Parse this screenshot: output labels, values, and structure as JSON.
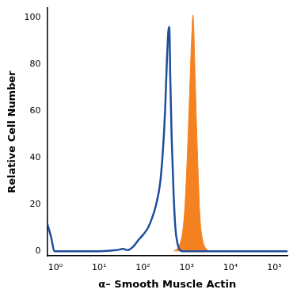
{
  "chart_data": {
    "type": "line",
    "x_label": "α– Smooth Muscle Actin",
    "y_label": "Relative Cell Number",
    "log": "x",
    "grid": false,
    "xlim": [
      0.65,
      200000
    ],
    "xticks": [
      {
        "value": 1,
        "label": "10⁰"
      },
      {
        "value": 10,
        "label": "10¹"
      },
      {
        "value": 100,
        "label": "10²"
      },
      {
        "value": 1000,
        "label": "10³"
      },
      {
        "value": 10000,
        "label": "10⁴"
      },
      {
        "value": 100000,
        "label": "10⁵"
      }
    ],
    "ylim": [
      -2,
      104
    ],
    "yticks": [
      0,
      20,
      40,
      60,
      80,
      100
    ],
    "series": [
      {
        "type": "line",
        "color": "#1f4e9c",
        "x": [
          0.65,
          0.8,
          0.95,
          10,
          25,
          35,
          45,
          60,
          80,
          100,
          130,
          160,
          200,
          250,
          290,
          320,
          350,
          380,
          400,
          420,
          450,
          500,
          550,
          620,
          700,
          800,
          200000
        ],
        "values": [
          12,
          6,
          0,
          0,
          0.5,
          1,
          0.5,
          2,
          5,
          7,
          10,
          14,
          20,
          30,
          45,
          60,
          80,
          94,
          96,
          75,
          50,
          25,
          10,
          3,
          0.5,
          0,
          0
        ]
      },
      {
        "type": "area",
        "color": "#f58220",
        "x": [
          500,
          650,
          800,
          900,
          1000,
          1100,
          1200,
          1300,
          1380,
          1450,
          1550,
          1700,
          1850,
          2000,
          2300,
          2800,
          3500
        ],
        "values": [
          0,
          2,
          8,
          18,
          35,
          55,
          75,
          92,
          101,
          95,
          75,
          50,
          30,
          15,
          5,
          1,
          0
        ]
      }
    ]
  }
}
